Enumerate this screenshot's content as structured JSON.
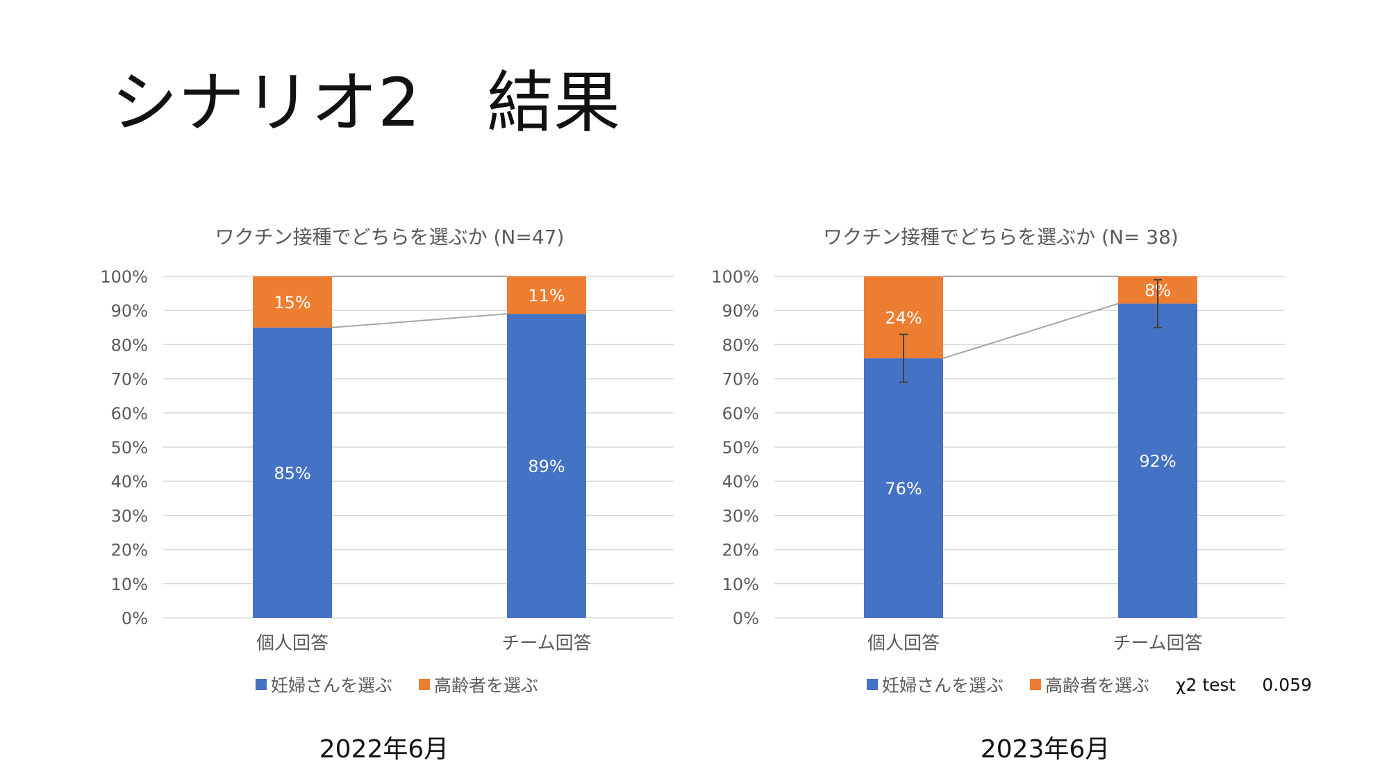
{
  "slide": {
    "title": "シナリオ2　結果"
  },
  "colors": {
    "pregnant": "#4472C4",
    "elderly": "#ED7D31",
    "grid": "#D9D9D9",
    "axis_text": "#595959",
    "connector": "#A6A6A6",
    "errorbar": "#404040"
  },
  "chart_data": [
    {
      "type": "bar",
      "stacked": "percent",
      "title": "ワクチン接種でどちらを選ぶか (N=47)",
      "categories": [
        "個人回答",
        "チーム回答"
      ],
      "series": [
        {
          "name": "妊婦さんを選ぶ",
          "values": [
            85,
            89
          ],
          "labels": [
            "85%",
            "89%"
          ]
        },
        {
          "name": "高齢者を選ぶ",
          "values": [
            15,
            11
          ],
          "labels": [
            "15%",
            "11%"
          ]
        }
      ],
      "ylim": [
        0,
        100
      ],
      "yticks": [
        "0%",
        "10%",
        "20%",
        "30%",
        "40%",
        "50%",
        "60%",
        "70%",
        "80%",
        "90%",
        "100%"
      ],
      "series_lines": true,
      "grid": true,
      "legend_position": "bottom",
      "period_label": "2022年6月"
    },
    {
      "type": "bar",
      "stacked": "percent",
      "title": "ワクチン接種でどちらを選ぶか (N= 38)",
      "categories": [
        "個人回答",
        "チーム回答"
      ],
      "series": [
        {
          "name": "妊婦さんを選ぶ",
          "values": [
            76,
            92
          ],
          "labels": [
            "76%",
            "92%"
          ],
          "error": [
            7,
            7
          ]
        },
        {
          "name": "高齢者を選ぶ",
          "values": [
            24,
            8
          ],
          "labels": [
            "24%",
            "8%"
          ]
        }
      ],
      "ylim": [
        0,
        100
      ],
      "yticks": [
        "0%",
        "10%",
        "20%",
        "30%",
        "40%",
        "50%",
        "60%",
        "70%",
        "80%",
        "90%",
        "100%"
      ],
      "series_lines": true,
      "grid": true,
      "legend_position": "bottom",
      "stat_label": "χ2 test",
      "stat_value": "0.059",
      "period_label": "2023年6月"
    }
  ]
}
